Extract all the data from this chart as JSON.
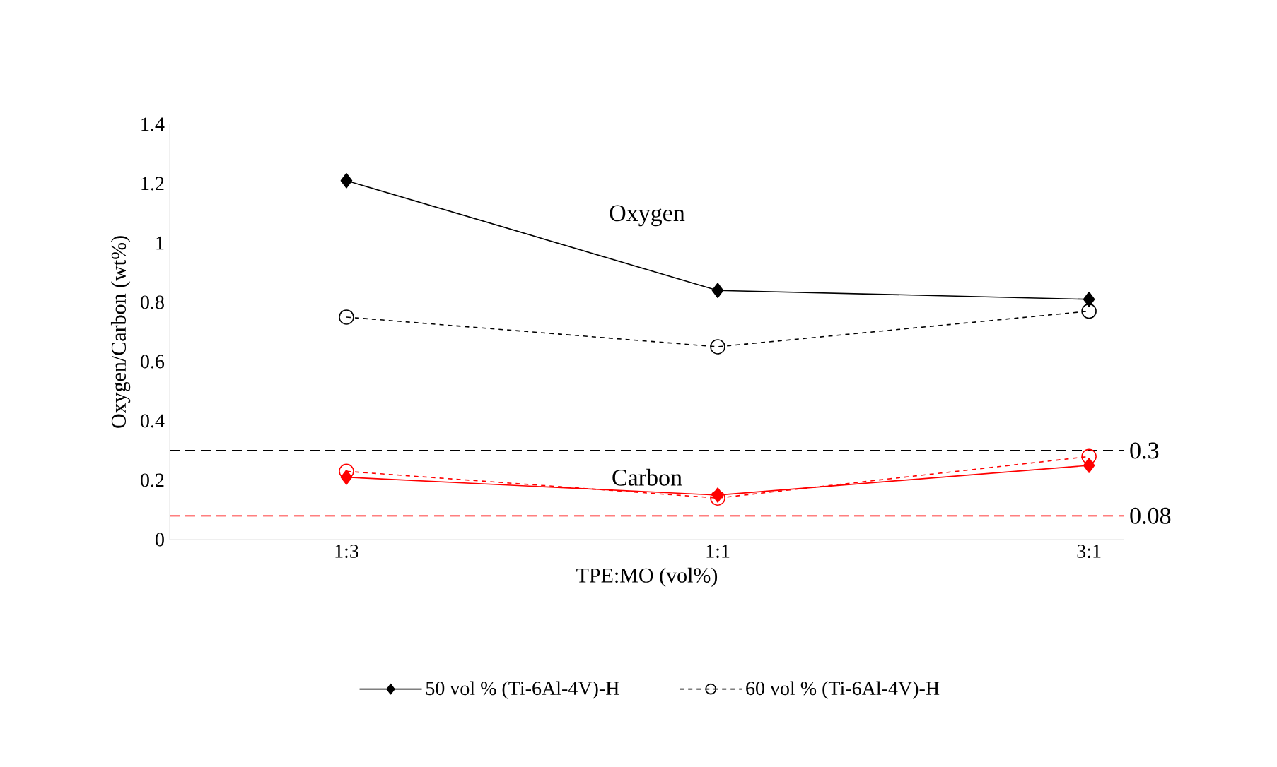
{
  "chart_data": {
    "type": "line",
    "xlabel": "TPE:MO (vol%)",
    "ylabel": "Oxygen/Carbon (wt%)",
    "categories": [
      "1:3",
      "1:1",
      "3:1"
    ],
    "series": [
      {
        "name": "50 vol % (Ti-6Al-4V)-H",
        "color": "#000000",
        "values": [
          1.21,
          0.84,
          0.81
        ],
        "marker": "diamond",
        "line_style": "solid"
      },
      {
        "name": "60 vol % (Ti-6Al-4V)-H",
        "color": "#000000",
        "values": [
          0.75,
          0.65,
          0.77
        ],
        "marker": "circle",
        "line_style": "dashed"
      },
      {
        "color": "#ff0000",
        "values": [
          0.21,
          0.15,
          0.25
        ],
        "marker": "diamond",
        "line_style": "solid"
      },
      {
        "color": "#ff0000",
        "values": [
          0.23,
          0.14,
          0.28
        ],
        "marker": "circle",
        "line_style": "dashed"
      }
    ],
    "ylim": [
      0,
      1.4
    ],
    "yticks": [
      0,
      0.2,
      0.4,
      0.6,
      0.8,
      1,
      1.2,
      1.4
    ],
    "ref_lines": [
      {
        "axis": "y",
        "value": 0.3,
        "label": "0.3",
        "color": "#000000",
        "line_style": "dashed"
      },
      {
        "axis": "y",
        "value": 0.08,
        "label": "0.08",
        "color": "#ff0000",
        "line_style": "dashed"
      }
    ],
    "annotations": [
      "Oxygen",
      "Carbon"
    ],
    "legend": "bottom"
  }
}
